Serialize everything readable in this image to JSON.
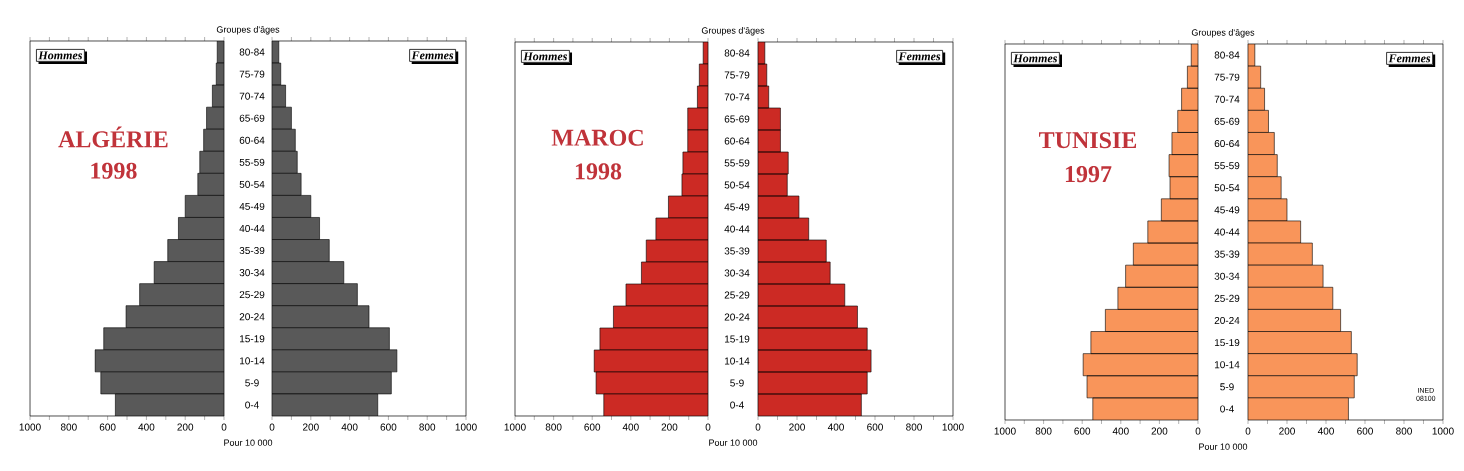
{
  "chart_data": [
    {
      "type": "bar",
      "orientation": "horizontal",
      "title": "Hommes",
      "ylabel": "Groupes d'âges",
      "xlabel": "Pour 10 000",
      "annotations": [
        "ALGÉRIE",
        "1998"
      ],
      "categories": [
        "80-84",
        "75-79",
        "70-74",
        "65-69",
        "60-64",
        "55-59",
        "50-54",
        "45-49",
        "40-44",
        "35-39",
        "30-34",
        "25-29",
        "20-24",
        "15-19",
        "10-14",
        "5-9",
        "0-4"
      ],
      "values": [
        35,
        40,
        60,
        90,
        105,
        125,
        135,
        200,
        235,
        290,
        360,
        435,
        505,
        620,
        665,
        635,
        560
      ],
      "color": "#595959",
      "xlim": [
        1000,
        0
      ],
      "xticks": [
        1000,
        {
          "value": 900,
          "label": null
        },
        800,
        {
          "value": 700,
          "label": null
        },
        600,
        {
          "value": 500,
          "label": null
        },
        400,
        {
          "value": 300,
          "label": null
        },
        200,
        {
          "value": 100,
          "label": null
        },
        0
      ]
    },
    {
      "type": "bar",
      "orientation": "horizontal",
      "title": "Femmes",
      "categories": [
        null,
        null,
        null,
        null,
        null,
        null,
        null,
        null,
        null,
        null,
        null,
        null,
        null,
        null,
        null,
        null,
        null
      ],
      "values": [
        35,
        45,
        70,
        100,
        120,
        130,
        150,
        200,
        245,
        295,
        370,
        440,
        500,
        605,
        645,
        615,
        545
      ],
      "color": "#595959",
      "xlim": [
        0,
        1000
      ],
      "xticks": [
        0,
        {
          "value": 100,
          "label": null
        },
        200,
        {
          "value": 300,
          "label": null
        },
        400,
        {
          "value": 500,
          "label": null
        },
        600,
        {
          "value": 700,
          "label": null
        },
        800,
        {
          "value": 900,
          "label": null
        },
        1000
      ],
      "tick_labels": "x"
    },
    {
      "type": "bar",
      "orientation": "horizontal",
      "title": "Hommes",
      "ylabel": "Groupes d'âges",
      "xlabel": "Pour 10 000",
      "annotations": [
        "MAROC",
        "1998"
      ],
      "categories": [
        "80-84",
        "75-79",
        "70-74",
        "65-69",
        "60-64",
        "55-59",
        "50-54",
        "45-49",
        "40-44",
        "35-39",
        "30-34",
        "25-29",
        "20-24",
        "15-19",
        "10-14",
        "5-9",
        "0-4"
      ],
      "values": [
        25,
        45,
        55,
        105,
        105,
        130,
        135,
        205,
        270,
        320,
        345,
        425,
        490,
        560,
        590,
        580,
        540
      ],
      "color": "#cc2a24",
      "xlim": [
        1000,
        0
      ],
      "xticks": [
        1000,
        {
          "value": 900,
          "label": null
        },
        800,
        {
          "value": 700,
          "label": null
        },
        600,
        {
          "value": 500,
          "label": null
        },
        400,
        {
          "value": 300,
          "label": null
        },
        200,
        {
          "value": 100,
          "label": null
        },
        0
      ]
    },
    {
      "type": "bar",
      "orientation": "horizontal",
      "title": "Femmes",
      "categories": [
        null,
        null,
        null,
        null,
        null,
        null,
        null,
        null,
        null,
        null,
        null,
        null,
        null,
        null,
        null,
        null,
        null
      ],
      "values": [
        35,
        45,
        55,
        115,
        115,
        155,
        150,
        210,
        260,
        350,
        370,
        445,
        510,
        560,
        580,
        560,
        530
      ],
      "color": "#cc2a24",
      "xlim": [
        0,
        1000
      ],
      "xticks": [
        0,
        {
          "value": 100,
          "label": null
        },
        200,
        {
          "value": 300,
          "label": null
        },
        400,
        {
          "value": 500,
          "label": null
        },
        600,
        {
          "value": 700,
          "label": null
        },
        800,
        {
          "value": 900,
          "label": null
        },
        1000
      ],
      "tick_labels": "x"
    },
    {
      "type": "bar",
      "orientation": "horizontal",
      "title": "Hommes",
      "ylabel": "Groupes d'âges",
      "xlabel": "Pour 10 000",
      "annotations": [
        "TUNISIE",
        "1997"
      ],
      "categories": [
        "80-84",
        "75-79",
        "70-74",
        "65-69",
        "60-64",
        "55-59",
        "50-54",
        "45-49",
        "40-44",
        "35-39",
        "30-34",
        "25-29",
        "20-24",
        "15-19",
        "10-14",
        "5-9",
        "0-4"
      ],
      "values": [
        35,
        55,
        85,
        105,
        135,
        150,
        145,
        190,
        260,
        335,
        375,
        415,
        480,
        555,
        595,
        575,
        545
      ],
      "color": "#f9955a",
      "xlim": [
        1000,
        0
      ],
      "xticks": [
        1000,
        {
          "value": 900,
          "label": null
        },
        800,
        {
          "value": 700,
          "label": null
        },
        600,
        {
          "value": 500,
          "label": null
        },
        400,
        {
          "value": 300,
          "label": null
        },
        200,
        {
          "value": 100,
          "label": null
        },
        0
      ]
    },
    {
      "type": "bar",
      "orientation": "horizontal",
      "title": "Femmes",
      "annotations": [
        "INED 08100"
      ],
      "categories": [
        null,
        null,
        null,
        null,
        null,
        null,
        null,
        null,
        null,
        null,
        null,
        null,
        null,
        null,
        null,
        null,
        null
      ],
      "values": [
        35,
        65,
        85,
        105,
        135,
        150,
        170,
        200,
        270,
        330,
        385,
        435,
        475,
        530,
        560,
        545,
        515
      ],
      "color": "#f9955a",
      "xlim": [
        0,
        1000
      ],
      "xticks": [
        0,
        {
          "value": 100,
          "label": null
        },
        200,
        {
          "value": 300,
          "label": null
        },
        400,
        {
          "value": 500,
          "label": null
        },
        600,
        {
          "value": 700,
          "label": null
        },
        800,
        {
          "value": 900,
          "label": null
        },
        1000
      ],
      "tick_labels": "x"
    }
  ]
}
